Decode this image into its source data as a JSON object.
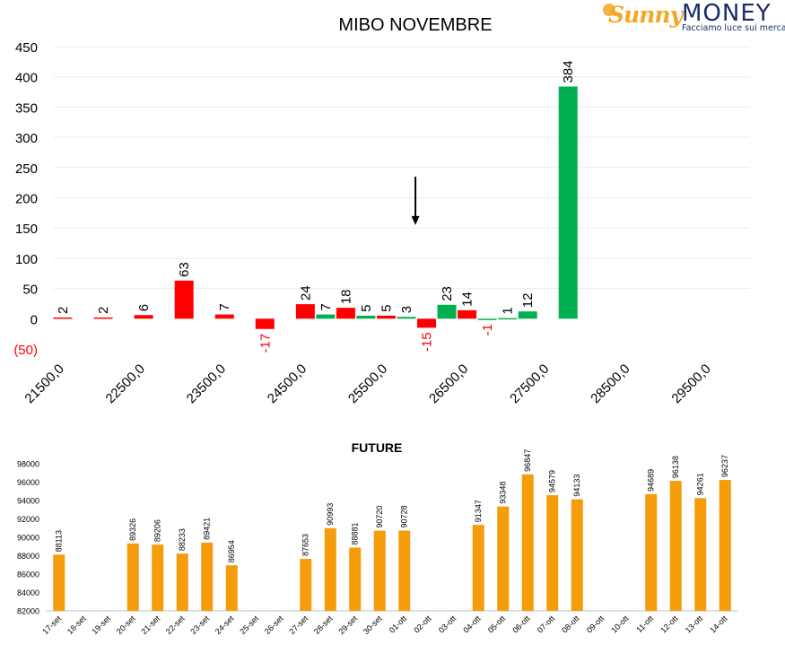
{
  "logo": {
    "brand_a": "Sunny",
    "brand_b": "MONEY",
    "tagline": "Facciamo luce sui mercati"
  },
  "colors": {
    "up": "#00b050",
    "down": "#ff0000",
    "future": "#f59c0a",
    "text": "#000000"
  },
  "chart_data": [
    {
      "type": "bar",
      "title": "MIBO NOVEMBRE",
      "ylim": [
        -50,
        450
      ],
      "yticks": [
        -50,
        0,
        50,
        100,
        150,
        200,
        250,
        300,
        350,
        400,
        450
      ],
      "ytick_labels": [
        "(50)",
        "0",
        "50",
        "100",
        "150",
        "200",
        "250",
        "300",
        "350",
        "400",
        "450"
      ],
      "xlim": [
        21500,
        30000
      ],
      "xticks": [
        21500,
        22500,
        23500,
        24500,
        25500,
        26500,
        27500,
        28500,
        29500
      ],
      "xtick_labels": [
        "21500,0",
        "22500,0",
        "23500,0",
        "24500,0",
        "25500,0",
        "26500,0",
        "27500,0",
        "28500,0",
        "29500,0"
      ],
      "grid": true,
      "annotation": {
        "type": "arrow-down",
        "x": 26250,
        "y_from": 235,
        "y_to": 155
      },
      "bars": [
        {
          "x": 21500,
          "value": 2,
          "color": "down"
        },
        {
          "x": 22000,
          "value": 2,
          "color": "down"
        },
        {
          "x": 22500,
          "value": 6,
          "color": "down"
        },
        {
          "x": 23000,
          "value": 63,
          "color": "down"
        },
        {
          "x": 23500,
          "value": 7,
          "color": "down"
        },
        {
          "x": 24000,
          "value": -17,
          "color": "down"
        },
        {
          "x": 24500,
          "value": 24,
          "color": "down"
        },
        {
          "x": 24750,
          "value": 7,
          "color": "up"
        },
        {
          "x": 25000,
          "value": 18,
          "color": "down"
        },
        {
          "x": 25250,
          "value": 5,
          "color": "up"
        },
        {
          "x": 25500,
          "value": 5,
          "color": "down"
        },
        {
          "x": 25750,
          "value": 3,
          "color": "up"
        },
        {
          "x": 26000,
          "value": -15,
          "color": "down"
        },
        {
          "x": 26250,
          "value": 23,
          "color": "up"
        },
        {
          "x": 26500,
          "value": 14,
          "color": "down"
        },
        {
          "x": 26750,
          "value": -1,
          "color": "up"
        },
        {
          "x": 27000,
          "value": 1,
          "color": "up"
        },
        {
          "x": 27250,
          "value": 12,
          "color": "up"
        },
        {
          "x": 27750,
          "value": 384,
          "color": "up"
        }
      ]
    },
    {
      "type": "bar",
      "title": "FUTURE",
      "ylim": [
        82000,
        98000
      ],
      "yticks": [
        82000,
        84000,
        86000,
        88000,
        90000,
        92000,
        94000,
        96000,
        98000
      ],
      "ytick_labels": [
        "82000",
        "84000",
        "86000",
        "88000",
        "90000",
        "92000",
        "94000",
        "96000",
        "98000"
      ],
      "categories": [
        "17-set",
        "18-set",
        "19-set",
        "20-set",
        "21-set",
        "22-set",
        "23-set",
        "24-set",
        "25-set",
        "26-set",
        "27-set",
        "28-set",
        "29-set",
        "30-set",
        "01-ott",
        "02-ott",
        "03-ott",
        "04-ott",
        "05-ott",
        "06-ott",
        "07-ott",
        "08-ott",
        "09-ott",
        "10-ott",
        "11-ott",
        "12-ott",
        "13-ott",
        "14-ott"
      ],
      "values": [
        88113,
        null,
        null,
        89326,
        89206,
        88233,
        89421,
        86954,
        null,
        null,
        87653,
        90993,
        88881,
        90720,
        90728,
        null,
        null,
        91347,
        93348,
        96847,
        94579,
        94133,
        null,
        null,
        94689,
        96138,
        94261,
        96237
      ],
      "value_labels": [
        "88113",
        "",
        "",
        "89326",
        "89206",
        "88233",
        "89421",
        "86954",
        "",
        "",
        "87653",
        "90993",
        "88881",
        "90720",
        "90728",
        "",
        "",
        "91347",
        "93348",
        "96847",
        "94579",
        "94133",
        "",
        "",
        "94689",
        "96138",
        "94261",
        "96237"
      ]
    }
  ]
}
